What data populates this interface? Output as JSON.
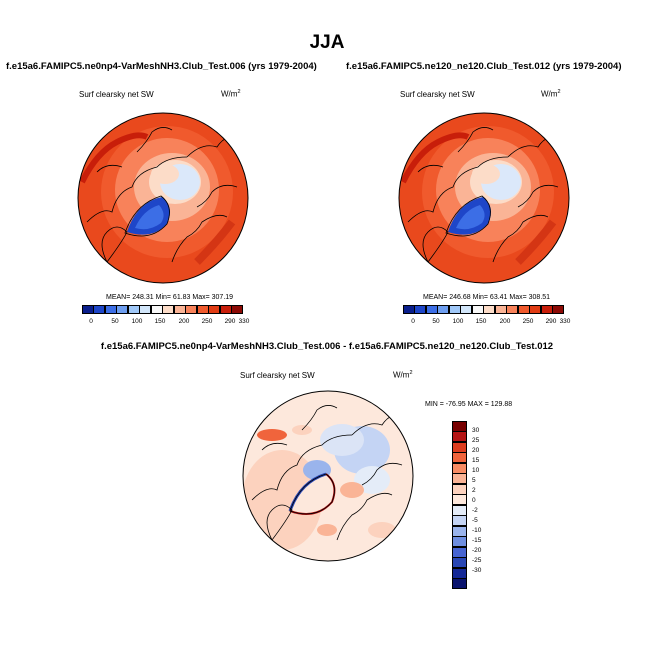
{
  "main_title": "JJA",
  "panels": [
    {
      "title": "f.e15a6.FAMIPC5.ne0np4-VarMeshNH3.Club_Test.006 (yrs 1979-2004)",
      "variable": "Surf clearsky net SW",
      "units": "W/m",
      "units_sup": "2",
      "stats": "MEAN= 248.31  Min= 61.83  Max= 307.19"
    },
    {
      "title": "f.e15a6.FAMIPC5.ne120_ne120.Club_Test.012 (yrs 1979-2004)",
      "variable": "Surf clearsky net SW",
      "units": "W/m",
      "units_sup": "2",
      "stats": "MEAN= 246.68  Min= 63.41  Max= 308.51"
    },
    {
      "title": "f.e15a6.FAMIPC5.ne0np4-VarMeshNH3.Club_Test.006 - f.e15a6.FAMIPC5.ne120_ne120.Club_Test.012",
      "variable": "Surf clearsky net SW",
      "units": "W/m",
      "units_sup": "2",
      "stats": "MIN = -76.95 MAX = 129.88"
    }
  ],
  "chart_data": [
    {
      "type": "heatmap",
      "projection": "north-polar-stereographic",
      "title": "f.e15a6.FAMIPC5.ne0np4-VarMeshNH3.Club_Test.006 (yrs 1979-2004)",
      "variable": "Surf clearsky net SW",
      "units": "W/m2",
      "mean": 248.31,
      "min": 61.83,
      "max": 307.19,
      "colorbar_levels": [
        0,
        50,
        100,
        150,
        200,
        250,
        290,
        330
      ],
      "colorbar_colors": [
        "#0a1e8c",
        "#1e46c8",
        "#3c6ee6",
        "#6e9ef0",
        "#a0c8f8",
        "#d2e6fa",
        "#f8f8f8",
        "#fcdcc8",
        "#fab496",
        "#f8825a",
        "#f05a2d",
        "#e13c14",
        "#c81e0a",
        "#8c0a05"
      ]
    },
    {
      "type": "heatmap",
      "projection": "north-polar-stereographic",
      "title": "f.e15a6.FAMIPC5.ne120_ne120.Club_Test.012 (yrs 1979-2004)",
      "variable": "Surf clearsky net SW",
      "units": "W/m2",
      "mean": 246.68,
      "min": 63.41,
      "max": 308.51,
      "colorbar_levels": [
        0,
        50,
        100,
        150,
        200,
        250,
        290,
        330
      ],
      "colorbar_colors": [
        "#0a1e8c",
        "#1e46c8",
        "#3c6ee6",
        "#6e9ef0",
        "#a0c8f8",
        "#d2e6fa",
        "#f8f8f8",
        "#fcdcc8",
        "#fab496",
        "#f8825a",
        "#f05a2d",
        "#e13c14",
        "#c81e0a",
        "#8c0a05"
      ]
    },
    {
      "type": "heatmap",
      "projection": "north-polar-stereographic",
      "title": "f.e15a6.FAMIPC5.ne0np4-VarMeshNH3.Club_Test.006 - f.e15a6.FAMIPC5.ne120_ne120.Club_Test.012",
      "variable": "Surf clearsky net SW",
      "units": "W/m2",
      "min": -76.95,
      "max": 129.88,
      "colorbar_levels": [
        30,
        25,
        20,
        15,
        10,
        5,
        2,
        0,
        -2,
        -5,
        -10,
        -15,
        -20,
        -25,
        -30
      ],
      "colorbar_colors": [
        "#780000",
        "#b41414",
        "#dc3c1e",
        "#f0643c",
        "#f88c64",
        "#fab496",
        "#fcd2be",
        "#fde8dc",
        "#e4ecf8",
        "#c4d4f4",
        "#9ab4ec",
        "#6e8ee0",
        "#4664d2",
        "#2846b4",
        "#142896",
        "#0a146e"
      ]
    }
  ]
}
